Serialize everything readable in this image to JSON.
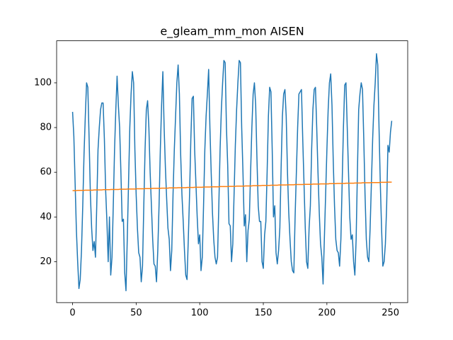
{
  "chart_data": {
    "type": "line",
    "title": "e_gleam_mm_mon AISEN",
    "x": [
      0,
      1,
      2,
      3,
      4,
      5,
      6,
      7,
      8,
      9,
      10,
      11,
      12,
      13,
      14,
      15,
      16,
      17,
      18,
      19,
      20,
      21,
      22,
      23,
      24,
      25,
      26,
      27,
      28,
      29,
      30,
      31,
      32,
      33,
      34,
      35,
      36,
      37,
      38,
      39,
      40,
      41,
      42,
      43,
      44,
      45,
      46,
      47,
      48,
      49,
      50,
      51,
      52,
      53,
      54,
      55,
      56,
      57,
      58,
      59,
      60,
      61,
      62,
      63,
      64,
      65,
      66,
      67,
      68,
      69,
      70,
      71,
      72,
      73,
      74,
      75,
      76,
      77,
      78,
      79,
      80,
      81,
      82,
      83,
      84,
      85,
      86,
      87,
      88,
      89,
      90,
      91,
      92,
      93,
      94,
      95,
      96,
      97,
      98,
      99,
      100,
      101,
      102,
      103,
      104,
      105,
      106,
      107,
      108,
      109,
      110,
      111,
      112,
      113,
      114,
      115,
      116,
      117,
      118,
      119,
      120,
      121,
      122,
      123,
      124,
      125,
      126,
      127,
      128,
      129,
      130,
      131,
      132,
      133,
      134,
      135,
      136,
      137,
      138,
      139,
      140,
      141,
      142,
      143,
      144,
      145,
      146,
      147,
      148,
      149,
      150,
      151,
      152,
      153,
      154,
      155,
      156,
      157,
      158,
      159,
      160,
      161,
      162,
      163,
      164,
      165,
      166,
      167,
      168,
      169,
      170,
      171,
      172,
      173,
      174,
      175,
      176,
      177,
      178,
      179,
      180,
      181,
      182,
      183,
      184,
      185,
      186,
      187,
      188,
      189,
      190,
      191,
      192,
      193,
      194,
      195,
      196,
      197,
      198,
      199,
      200,
      201,
      202,
      203,
      204,
      205,
      206,
      207,
      208,
      209,
      210,
      211,
      212,
      213,
      214,
      215,
      216,
      217,
      218,
      219,
      220,
      221,
      222,
      223,
      224,
      225,
      226,
      227,
      228,
      229,
      230,
      231,
      232,
      233,
      234,
      235,
      236,
      237,
      238,
      239,
      240,
      241,
      242,
      243,
      244,
      245,
      246,
      247,
      248,
      249,
      250,
      251
    ],
    "series": [
      {
        "color": "#1f77b4",
        "values": [
          87,
          76,
          55,
          34,
          20,
          8,
          12,
          25,
          45,
          68,
          85,
          100,
          98,
          75,
          50,
          35,
          25,
          29,
          22,
          45,
          70,
          80,
          88,
          91,
          91,
          75,
          52,
          38,
          20,
          40,
          14,
          22,
          45,
          70,
          88,
          103,
          90,
          80,
          60,
          38,
          39,
          15,
          7,
          30,
          55,
          80,
          95,
          105,
          100,
          70,
          50,
          35,
          24,
          22,
          11,
          18,
          45,
          70,
          88,
          92,
          80,
          60,
          45,
          30,
          19,
          18,
          11,
          25,
          45,
          70,
          90,
          105,
          80,
          62,
          48,
          35,
          30,
          16,
          25,
          50,
          70,
          85,
          100,
          108,
          95,
          68,
          50,
          38,
          25,
          14,
          12,
          30,
          50,
          75,
          93,
          94,
          70,
          55,
          40,
          28,
          32,
          16,
          22,
          45,
          70,
          85,
          95,
          106,
          80,
          60,
          42,
          30,
          22,
          19,
          22,
          45,
          70,
          88,
          100,
          110,
          109,
          80,
          63,
          37,
          36,
          20,
          28,
          50,
          72,
          88,
          100,
          110,
          109,
          80,
          60,
          36,
          41,
          20,
          34,
          39,
          60,
          80,
          95,
          100,
          90,
          66,
          45,
          38,
          38,
          20,
          17,
          32,
          38,
          60,
          85,
          98,
          96,
          70,
          40,
          45,
          24,
          19,
          25,
          35,
          62,
          85,
          95,
          97,
          85,
          60,
          42,
          30,
          20,
          16,
          15,
          40,
          60,
          80,
          95,
          96,
          97,
          75,
          55,
          35,
          20,
          17,
          35,
          45,
          70,
          88,
          97,
          98,
          80,
          60,
          42,
          28,
          22,
          10,
          30,
          50,
          70,
          88,
          100,
          104,
          90,
          65,
          45,
          30,
          25,
          24,
          18,
          30,
          55,
          80,
          99,
          100,
          80,
          60,
          40,
          30,
          32,
          20,
          14,
          30,
          60,
          88,
          95,
          100,
          97,
          75,
          50,
          30,
          22,
          20,
          35,
          55,
          75,
          90,
          100,
          113,
          108,
          80,
          55,
          35,
          18,
          20,
          28,
          45,
          72,
          69,
          78,
          83
        ]
      },
      {
        "color": "#ff7f0e",
        "values": [
          51.8,
          51.8,
          51.8,
          51.8,
          51.9,
          51.9,
          51.9,
          51.9,
          51.9,
          51.9,
          52.0,
          52.0,
          52.0,
          52.0,
          52.0,
          52.0,
          52.0,
          52.1,
          52.1,
          52.1,
          52.1,
          52.1,
          52.1,
          52.1,
          52.2,
          52.2,
          52.2,
          52.2,
          52.2,
          52.2,
          52.3,
          52.3,
          52.3,
          52.3,
          52.3,
          52.3,
          52.3,
          52.4,
          52.4,
          52.4,
          52.4,
          52.4,
          52.4,
          52.5,
          52.5,
          52.5,
          52.5,
          52.5,
          52.5,
          52.5,
          52.6,
          52.6,
          52.6,
          52.6,
          52.6,
          52.6,
          52.6,
          52.7,
          52.7,
          52.7,
          52.7,
          52.7,
          52.7,
          52.8,
          52.8,
          52.8,
          52.8,
          52.8,
          52.8,
          52.8,
          52.9,
          52.9,
          52.9,
          52.9,
          52.9,
          52.9,
          53.0,
          53.0,
          53.0,
          53.0,
          53.0,
          53.0,
          53.0,
          53.1,
          53.1,
          53.1,
          53.1,
          53.1,
          53.1,
          53.1,
          53.2,
          53.2,
          53.2,
          53.2,
          53.2,
          53.2,
          53.3,
          53.3,
          53.3,
          53.3,
          53.3,
          53.3,
          53.3,
          53.4,
          53.4,
          53.4,
          53.4,
          53.4,
          53.4,
          53.5,
          53.5,
          53.5,
          53.5,
          53.5,
          53.5,
          53.5,
          53.6,
          53.6,
          53.6,
          53.6,
          53.6,
          53.6,
          53.6,
          53.7,
          53.7,
          53.7,
          53.7,
          53.7,
          53.7,
          53.8,
          53.8,
          53.8,
          53.8,
          53.8,
          53.8,
          53.8,
          53.9,
          53.9,
          53.9,
          53.9,
          53.9,
          53.9,
          54.0,
          54.0,
          54.0,
          54.0,
          54.0,
          54.0,
          54.0,
          54.1,
          54.1,
          54.1,
          54.1,
          54.1,
          54.1,
          54.1,
          54.2,
          54.2,
          54.2,
          54.2,
          54.2,
          54.2,
          54.3,
          54.3,
          54.3,
          54.3,
          54.3,
          54.3,
          54.3,
          54.4,
          54.4,
          54.4,
          54.4,
          54.4,
          54.4,
          54.5,
          54.5,
          54.5,
          54.5,
          54.5,
          54.5,
          54.5,
          54.6,
          54.6,
          54.6,
          54.6,
          54.6,
          54.6,
          54.6,
          54.7,
          54.7,
          54.7,
          54.7,
          54.7,
          54.7,
          54.8,
          54.8,
          54.8,
          54.8,
          54.8,
          54.8,
          54.8,
          54.9,
          54.9,
          54.9,
          54.9,
          54.9,
          54.9,
          55.0,
          55.0,
          55.0,
          55.0,
          55.0,
          55.0,
          55.0,
          55.1,
          55.1,
          55.1,
          55.1,
          55.1,
          55.1,
          55.1,
          55.2,
          55.2,
          55.2,
          55.2,
          55.2,
          55.2,
          55.3,
          55.3,
          55.3,
          55.3,
          55.3,
          55.3,
          55.3,
          55.4,
          55.4,
          55.4,
          55.4,
          55.4,
          55.4,
          55.4,
          55.5,
          55.5,
          55.5,
          55.5,
          55.5,
          55.5,
          55.6,
          55.6,
          55.6,
          55.6
        ]
      }
    ],
    "xlim": [
      -12.55,
      263.55
    ],
    "xticks": [
      0,
      50,
      100,
      150,
      200,
      250
    ],
    "ylim": [
      1.7,
      118.8
    ],
    "yticks": [
      20,
      40,
      60,
      80,
      100
    ],
    "grid": false
  }
}
